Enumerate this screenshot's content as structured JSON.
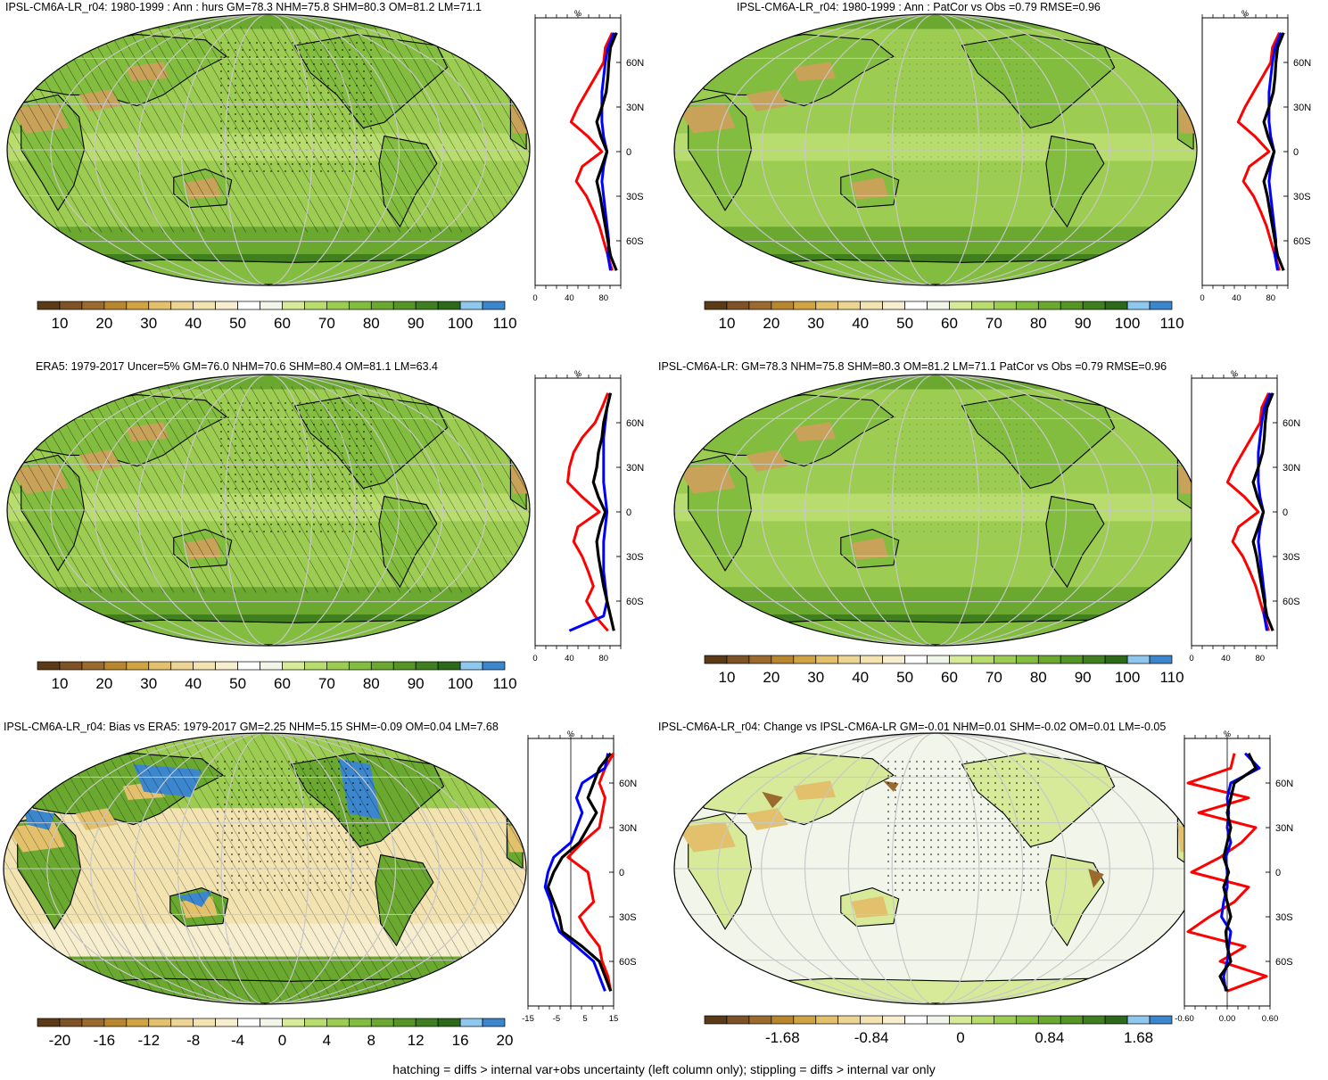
{
  "footnote": "hatching = diffs > internal var+obs uncertainty (left column only); stippling = diffs > internal var only",
  "colors": {
    "abs_scale": [
      "#5a3a17",
      "#7d5227",
      "#9b6a2f",
      "#b8862f",
      "#d0a442",
      "#e2c06c",
      "#ecd493",
      "#f2e3b1",
      "#f6eecf",
      "#ffffff",
      "#f2f5ea",
      "#d6ea9a",
      "#b9dc6e",
      "#9ccd52",
      "#83bd3f",
      "#6aa830",
      "#559526",
      "#3f7f1f",
      "#2c6a1a",
      "#8ec8ee",
      "#3b86cc"
    ],
    "ocean_abs": "#9ccd52",
    "land_abs": "#83bd3f",
    "bias_ocean": "#f2e3b1",
    "change_bg": "#f2f5ea",
    "profile_model": "#000000",
    "profile_obs": "#0000ff",
    "profile_land": "#ff0000"
  },
  "panels": [
    {
      "id": "model-abs",
      "title": "IPSL-CM6A-LR_r04: 1980-1999 : Ann : hurs GM=78.3 NHM=75.8 SHM=80.3 OM=81.2 LM=71.1",
      "colorbar_labels": [
        "10",
        "20",
        "30",
        "40",
        "50",
        "60",
        "70",
        "80",
        "90",
        "100",
        "110"
      ],
      "profile_unit": "%",
      "profile_xticks": [
        "0",
        "40",
        "80"
      ],
      "lat_labels": [
        "60N",
        "30N",
        "0",
        "30S",
        "60S"
      ]
    },
    {
      "id": "model-patcor",
      "title": "IPSL-CM6A-LR_r04: 1980-1999 : Ann : PatCor vs Obs =0.79 RMSE=0.96",
      "colorbar_labels": [
        "10",
        "20",
        "30",
        "40",
        "50",
        "60",
        "70",
        "80",
        "90",
        "100",
        "110"
      ],
      "profile_unit": "%",
      "profile_xticks": [
        "0",
        "40",
        "80"
      ],
      "lat_labels": [
        "60N",
        "30N",
        "0",
        "30S",
        "60S"
      ]
    },
    {
      "id": "obs-abs",
      "title": "ERA5: 1979-2017 Uncer=5% GM=76.0 NHM=70.6 SHM=80.4 OM=81.1 LM=63.4",
      "colorbar_labels": [
        "10",
        "20",
        "30",
        "40",
        "50",
        "60",
        "70",
        "80",
        "90",
        "100",
        "110"
      ],
      "profile_unit": "%",
      "profile_xticks": [
        "0",
        "40",
        "80"
      ],
      "lat_labels": [
        "60N",
        "30N",
        "0",
        "30S",
        "60S"
      ]
    },
    {
      "id": "ens-abs",
      "title": "IPSL-CM6A-LR: GM=78.3 NHM=75.8 SHM=80.3 OM=81.2 LM=71.1 PatCor vs Obs =0.79 RMSE=0.96",
      "colorbar_labels": [
        "10",
        "20",
        "30",
        "40",
        "50",
        "60",
        "70",
        "80",
        "90",
        "100",
        "110"
      ],
      "profile_unit": "%",
      "profile_xticks": [
        "0",
        "40",
        "80"
      ],
      "lat_labels": [
        "60N",
        "30N",
        "0",
        "30S",
        "60S"
      ]
    },
    {
      "id": "bias",
      "title": "IPSL-CM6A-LR_r04: Bias vs ERA5: 1979-2017 GM=2.25 NHM=5.15 SHM=-0.09 OM=0.04 LM=7.68",
      "colorbar_labels": [
        "-20",
        "-16",
        "-12",
        "-8",
        "-4",
        "0",
        "4",
        "8",
        "12",
        "16",
        "20"
      ],
      "profile_unit": "%",
      "profile_xticks": [
        "-15",
        "-5",
        "5",
        "15"
      ],
      "lat_labels": [
        "60N",
        "30N",
        "0",
        "30S",
        "60S"
      ]
    },
    {
      "id": "change",
      "title": "IPSL-CM6A-LR_r04: Change vs IPSL-CM6A-LR GM=-0.01 NHM=0.01 SHM=-0.02 OM=0.01 LM=-0.05",
      "colorbar_labels": [
        "-1.68",
        "-0.84",
        "0",
        "0.84",
        "1.68"
      ],
      "profile_unit": "%",
      "profile_xticks": [
        "-0.60",
        "0.00",
        "0.60"
      ],
      "lat_labels": [
        "60N",
        "30N",
        "0",
        "30S",
        "60S"
      ]
    }
  ],
  "chart_data": [
    {
      "type": "line",
      "title": "IPSL-CM6A-LR_r04: 1980-1999 : Ann : hurs GM=78.3 NHM=75.8 SHM=80.3 OM=81.2 LM=71.1",
      "xlabel": "%",
      "ylim": [
        -90,
        90
      ],
      "xlim": [
        0,
        100
      ],
      "y": [
        80,
        70,
        60,
        50,
        40,
        30,
        20,
        10,
        0,
        -10,
        -20,
        -30,
        -40,
        -50,
        -60,
        -70,
        -80
      ],
      "series": [
        {
          "values": [
            95,
            88,
            86,
            85,
            83,
            78,
            72,
            77,
            84,
            78,
            72,
            76,
            79,
            82,
            85,
            88,
            95
          ]
        },
        {
          "values": [
            92,
            85,
            82,
            80,
            78,
            78,
            78,
            80,
            84,
            80,
            78,
            80,
            82,
            84,
            86,
            85,
            88
          ]
        },
        {
          "values": [
            90,
            82,
            80,
            70,
            60,
            50,
            42,
            62,
            78,
            55,
            48,
            60,
            68,
            75,
            80,
            85,
            90
          ]
        }
      ]
    },
    {
      "type": "line",
      "title": "IPSL-CM6A-LR_r04: 1980-1999 : Ann : PatCor vs Obs =0.79 RMSE=0.96",
      "xlabel": "%",
      "ylim": [
        -90,
        90
      ],
      "xlim": [
        0,
        100
      ],
      "y": [
        80,
        70,
        60,
        50,
        40,
        30,
        20,
        10,
        0,
        -10,
        -20,
        -30,
        -40,
        -50,
        -60,
        -70,
        -80
      ],
      "series": [
        {
          "values": [
            95,
            88,
            86,
            85,
            83,
            78,
            72,
            77,
            84,
            78,
            72,
            76,
            79,
            82,
            85,
            88,
            95
          ]
        },
        {
          "values": [
            92,
            85,
            82,
            80,
            78,
            78,
            78,
            80,
            84,
            80,
            78,
            80,
            82,
            84,
            86,
            85,
            88
          ]
        },
        {
          "values": [
            90,
            82,
            80,
            70,
            60,
            50,
            42,
            62,
            78,
            55,
            48,
            60,
            68,
            75,
            80,
            85,
            90
          ]
        }
      ]
    },
    {
      "type": "line",
      "title": "ERA5: 1979-2017 Uncer=5% GM=76.0 NHM=70.6 SHM=80.4 OM=81.1 LM=63.4",
      "xlabel": "%",
      "ylim": [
        -90,
        90
      ],
      "xlim": [
        0,
        100
      ],
      "y": [
        80,
        70,
        60,
        50,
        40,
        30,
        20,
        10,
        0,
        -10,
        -20,
        -30,
        -40,
        -50,
        -60,
        -70,
        -80
      ],
      "series": [
        {
          "values": [
            88,
            84,
            80,
            78,
            74,
            72,
            68,
            74,
            82,
            76,
            72,
            74,
            77,
            80,
            84,
            88,
            92
          ]
        },
        {
          "values": [
            88,
            84,
            82,
            80,
            80,
            80,
            80,
            82,
            84,
            82,
            80,
            80,
            80,
            82,
            84,
            80,
            40
          ]
        },
        {
          "values": [
            85,
            78,
            70,
            55,
            45,
            40,
            38,
            55,
            75,
            50,
            45,
            55,
            62,
            68,
            60,
            70,
            85
          ]
        }
      ]
    },
    {
      "type": "line",
      "title": "IPSL-CM6A-LR: GM=78.3 NHM=75.8 SHM=80.3 OM=81.2 LM=71.1 PatCor vs Obs =0.79 RMSE=0.96",
      "xlabel": "%",
      "ylim": [
        -90,
        90
      ],
      "xlim": [
        0,
        100
      ],
      "y": [
        80,
        70,
        60,
        50,
        40,
        30,
        20,
        10,
        0,
        -10,
        -20,
        -30,
        -40,
        -50,
        -60,
        -70,
        -80
      ],
      "series": [
        {
          "values": [
            95,
            88,
            86,
            85,
            83,
            78,
            72,
            77,
            84,
            78,
            72,
            76,
            79,
            82,
            85,
            88,
            95
          ]
        },
        {
          "values": [
            92,
            85,
            82,
            80,
            78,
            78,
            78,
            80,
            84,
            80,
            78,
            80,
            82,
            84,
            86,
            85,
            88
          ]
        },
        {
          "values": [
            90,
            82,
            80,
            70,
            60,
            50,
            42,
            62,
            78,
            55,
            48,
            60,
            68,
            75,
            80,
            85,
            90
          ]
        }
      ]
    },
    {
      "type": "line",
      "title": "IPSL-CM6A-LR_r04: Bias vs ERA5: 1979-2017 GM=2.25 NHM=5.15 SHM=-0.09 OM=0.04 LM=7.68",
      "xlabel": "%",
      "ylim": [
        -90,
        90
      ],
      "xlim": [
        -15,
        15
      ],
      "y": [
        80,
        70,
        60,
        50,
        40,
        30,
        20,
        10,
        0,
        -10,
        -20,
        -30,
        -40,
        -50,
        -60,
        -70,
        -80
      ],
      "series": [
        {
          "values": [
            14,
            10,
            8,
            6,
            9,
            6,
            3,
            -3,
            -6,
            -8,
            -6,
            -4,
            -3,
            4,
            10,
            12,
            14
          ]
        },
        {
          "values": [
            13,
            12,
            4,
            2,
            4,
            2,
            0,
            -6,
            -8,
            -9,
            -7,
            -6,
            -4,
            2,
            8,
            10,
            12
          ]
        },
        {
          "values": [
            15,
            12,
            10,
            12,
            11,
            10,
            4,
            -1,
            6,
            7,
            8,
            3,
            6,
            10,
            11,
            13,
            14
          ]
        }
      ]
    },
    {
      "type": "line",
      "title": "IPSL-CM6A-LR_r04: Change vs IPSL-CM6A-LR GM=-0.01 NHM=0.01 SHM=-0.02 OM=0.01 LM=-0.05",
      "xlabel": "%",
      "ylim": [
        -90,
        90
      ],
      "xlim": [
        -0.6,
        0.6
      ],
      "y": [
        80,
        70,
        60,
        50,
        40,
        30,
        20,
        10,
        0,
        -10,
        -20,
        -30,
        -40,
        -50,
        -60,
        -70,
        -80
      ],
      "series": [
        {
          "values": [
            0.3,
            0.4,
            0.1,
            0.05,
            0.0,
            0.05,
            0.0,
            -0.05,
            0.02,
            -0.05,
            0.0,
            0.05,
            -0.02,
            0.0,
            0.05,
            -0.1,
            0.0
          ]
        },
        {
          "values": [
            0.25,
            0.45,
            0.05,
            0.0,
            0.02,
            0.0,
            0.05,
            -0.02,
            0.0,
            0.0,
            -0.05,
            -0.08,
            0.05,
            0.02,
            0.0,
            -0.05,
            -0.02
          ]
        },
        {
          "values": [
            0.1,
            0.05,
            -0.55,
            0.3,
            -0.4,
            0.4,
            0.2,
            -0.1,
            -0.5,
            0.3,
            0.1,
            -0.25,
            -0.55,
            0.25,
            -0.1,
            0.55,
            0.0
          ]
        }
      ]
    }
  ]
}
